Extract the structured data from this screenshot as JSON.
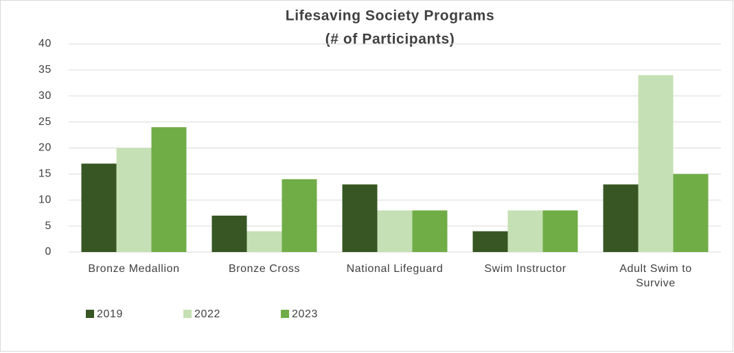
{
  "chart_data": {
    "type": "bar",
    "title": [
      "Lifesaving Society Programs",
      "(# of Participants)"
    ],
    "categories": [
      "Bronze Medallion",
      "Bronze Cross",
      "National Lifeguard",
      "Swim Instructor",
      "Adult Swim to Survive"
    ],
    "series": [
      {
        "name": "2019",
        "color": "#375623",
        "values": [
          17,
          7,
          13,
          4,
          13
        ]
      },
      {
        "name": "2022",
        "color": "#c5e0b4",
        "values": [
          20,
          4,
          8,
          8,
          34
        ]
      },
      {
        "name": "2023",
        "color": "#70ad47",
        "values": [
          24,
          14,
          8,
          8,
          15
        ]
      }
    ],
    "ylim": [
      0,
      40
    ],
    "yticks": [
      0,
      5,
      10,
      15,
      20,
      25,
      30,
      35,
      40
    ],
    "grid": true,
    "legend": "bottom"
  }
}
